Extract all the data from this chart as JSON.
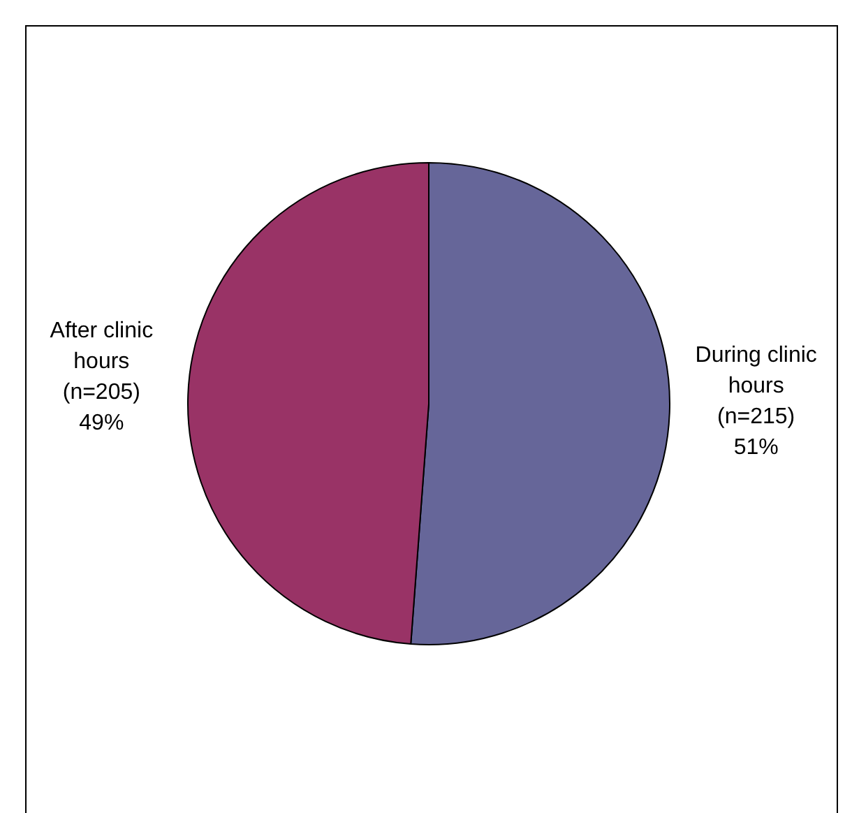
{
  "chart_data": {
    "type": "pie",
    "categories": [
      "During clinic hours",
      "After clinic hours"
    ],
    "values": [
      215,
      205
    ],
    "colors": [
      "#666699",
      "#993366"
    ],
    "value_labels": [
      "(n=215)\n51%",
      "(n=205)\n49%"
    ],
    "legend": false
  }
}
